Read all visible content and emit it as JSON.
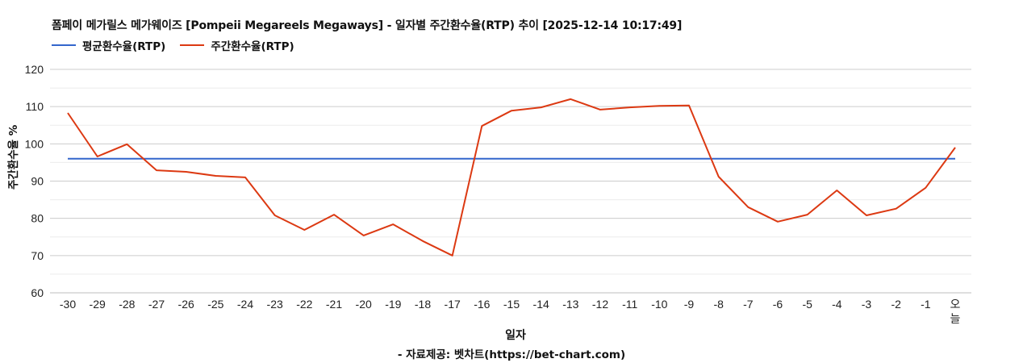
{
  "title": "폼페이 메가릴스 메가웨이즈 [Pompeii Megareels Megaways] - 일자별 주간환수율(RTP) 추이 [2025-12-14 10:17:49]",
  "legend": [
    {
      "label": "평균환수율(RTP)",
      "color": "#3366cc"
    },
    {
      "label": "주간환수율(RTP)",
      "color": "#dc3912"
    }
  ],
  "yaxis_label": "주간환수율 %",
  "xaxis_label": "일자",
  "source": "- 자료제공: 벳차트(https://bet-chart.com)",
  "chart_data": {
    "type": "line",
    "title": "폼페이 메가릴스 메가웨이즈 [Pompeii Megareels Megaways] - 일자별 주간환수율(RTP) 추이 [2025-12-14 10:17:49]",
    "xlabel": "일자",
    "ylabel": "주간환수율 %",
    "ylim": [
      60,
      120
    ],
    "yticks": [
      60,
      70,
      80,
      90,
      100,
      110,
      120
    ],
    "grid": true,
    "legend_position": "top-left",
    "categories": [
      "-30",
      "-29",
      "-28",
      "-27",
      "-26",
      "-25",
      "-24",
      "-23",
      "-22",
      "-21",
      "-20",
      "-19",
      "-18",
      "-17",
      "-16",
      "-15",
      "-14",
      "-13",
      "-12",
      "-11",
      "-10",
      "-9",
      "-8",
      "-7",
      "-6",
      "-5",
      "-4",
      "-3",
      "-2",
      "-1",
      "오늘"
    ],
    "series": [
      {
        "name": "평균환수율(RTP)",
        "color": "#3366cc",
        "values": [
          96.0,
          96.0,
          96.0,
          96.0,
          96.0,
          96.0,
          96.0,
          96.0,
          96.0,
          96.0,
          96.0,
          96.0,
          96.0,
          96.0,
          96.0,
          96.0,
          96.0,
          96.0,
          96.0,
          96.0,
          96.0,
          96.0,
          96.0,
          96.0,
          96.0,
          96.0,
          96.0,
          96.0,
          96.0,
          96.0,
          96.0
        ]
      },
      {
        "name": "주간환수율(RTP)",
        "color": "#dc3912",
        "values": [
          108.3,
          96.6,
          99.9,
          92.9,
          92.5,
          91.4,
          91.0,
          80.8,
          76.9,
          81.0,
          75.4,
          78.4,
          73.9,
          70.0,
          104.8,
          108.9,
          109.8,
          112.0,
          109.2,
          109.8,
          110.2,
          110.3,
          91.2,
          83.0,
          79.1,
          81.0,
          87.5,
          80.8,
          82.6,
          88.2,
          99.0
        ]
      }
    ]
  }
}
